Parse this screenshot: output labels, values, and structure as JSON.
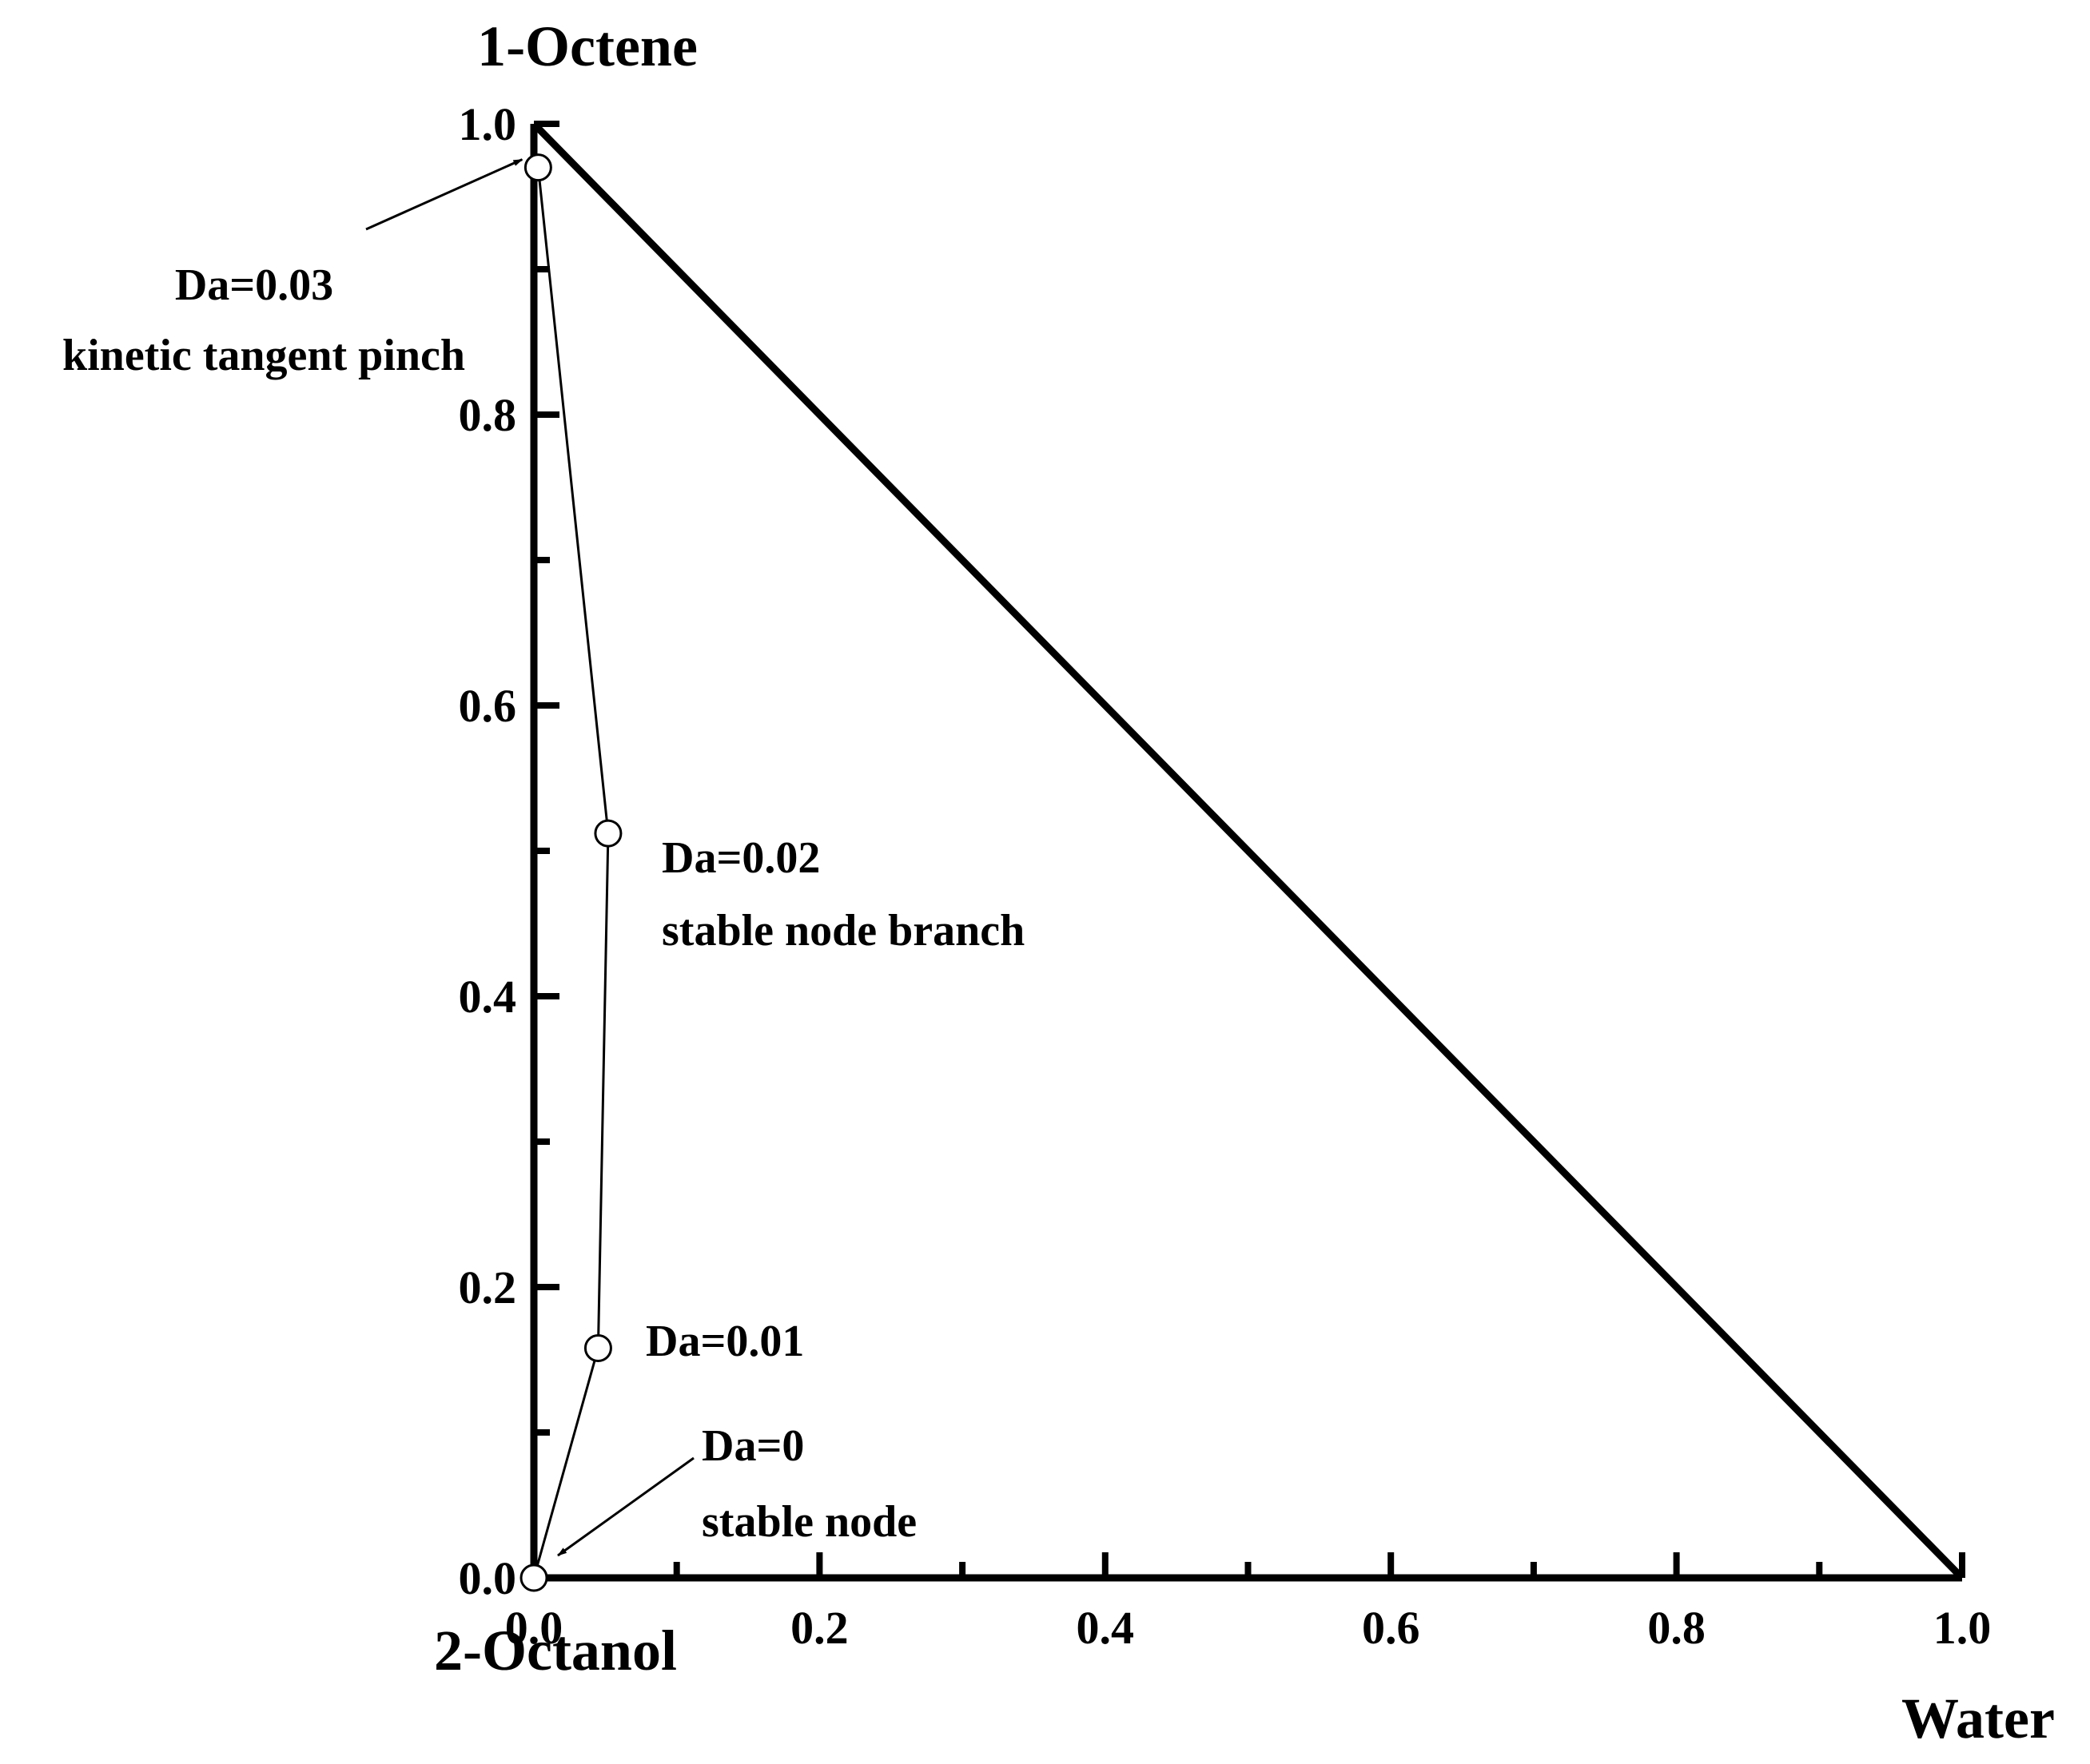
{
  "chart_data": {
    "type": "scatter",
    "corner_labels": {
      "top": "1-Octene",
      "origin": "2-Octanol",
      "right": "Water"
    },
    "x_axis": {
      "range": [
        0,
        1
      ],
      "ticks": [
        "0.0",
        "0.2",
        "0.4",
        "0.6",
        "0.8",
        "1.0"
      ],
      "minor_step": 0.1
    },
    "y_axis": {
      "range": [
        0,
        1
      ],
      "ticks": [
        "0.0",
        "0.2",
        "0.4",
        "0.6",
        "0.8",
        "1.0"
      ],
      "minor_step": 0.1
    },
    "series": [
      {
        "points": [
          {
            "x": 0.0,
            "y": 0.0,
            "da": "Da=0"
          },
          {
            "x": 0.045,
            "y": 0.158,
            "da": "Da=0.01"
          },
          {
            "x": 0.052,
            "y": 0.512,
            "da": "Da=0.02"
          },
          {
            "x": 0.003,
            "y": 0.97,
            "da": "Da=0.03"
          }
        ]
      }
    ],
    "annotations": [
      {
        "lines": [
          "Da=0.03",
          "kinetic tangent pinch"
        ],
        "arrow": true,
        "target": {
          "x": 0.003,
          "y": 0.97
        }
      },
      {
        "lines": [
          "Da=0.02",
          "stable node branch"
        ],
        "arrow": false
      },
      {
        "lines": [
          "Da=0.01"
        ],
        "arrow": false
      },
      {
        "lines": [
          "Da=0",
          "stable node"
        ],
        "arrow": true,
        "target": {
          "x": 0.0,
          "y": 0.0
        }
      }
    ],
    "boundary": [
      [
        0,
        0
      ],
      [
        1,
        0
      ],
      [
        0,
        1
      ]
    ],
    "grid": false,
    "legend": "none"
  }
}
